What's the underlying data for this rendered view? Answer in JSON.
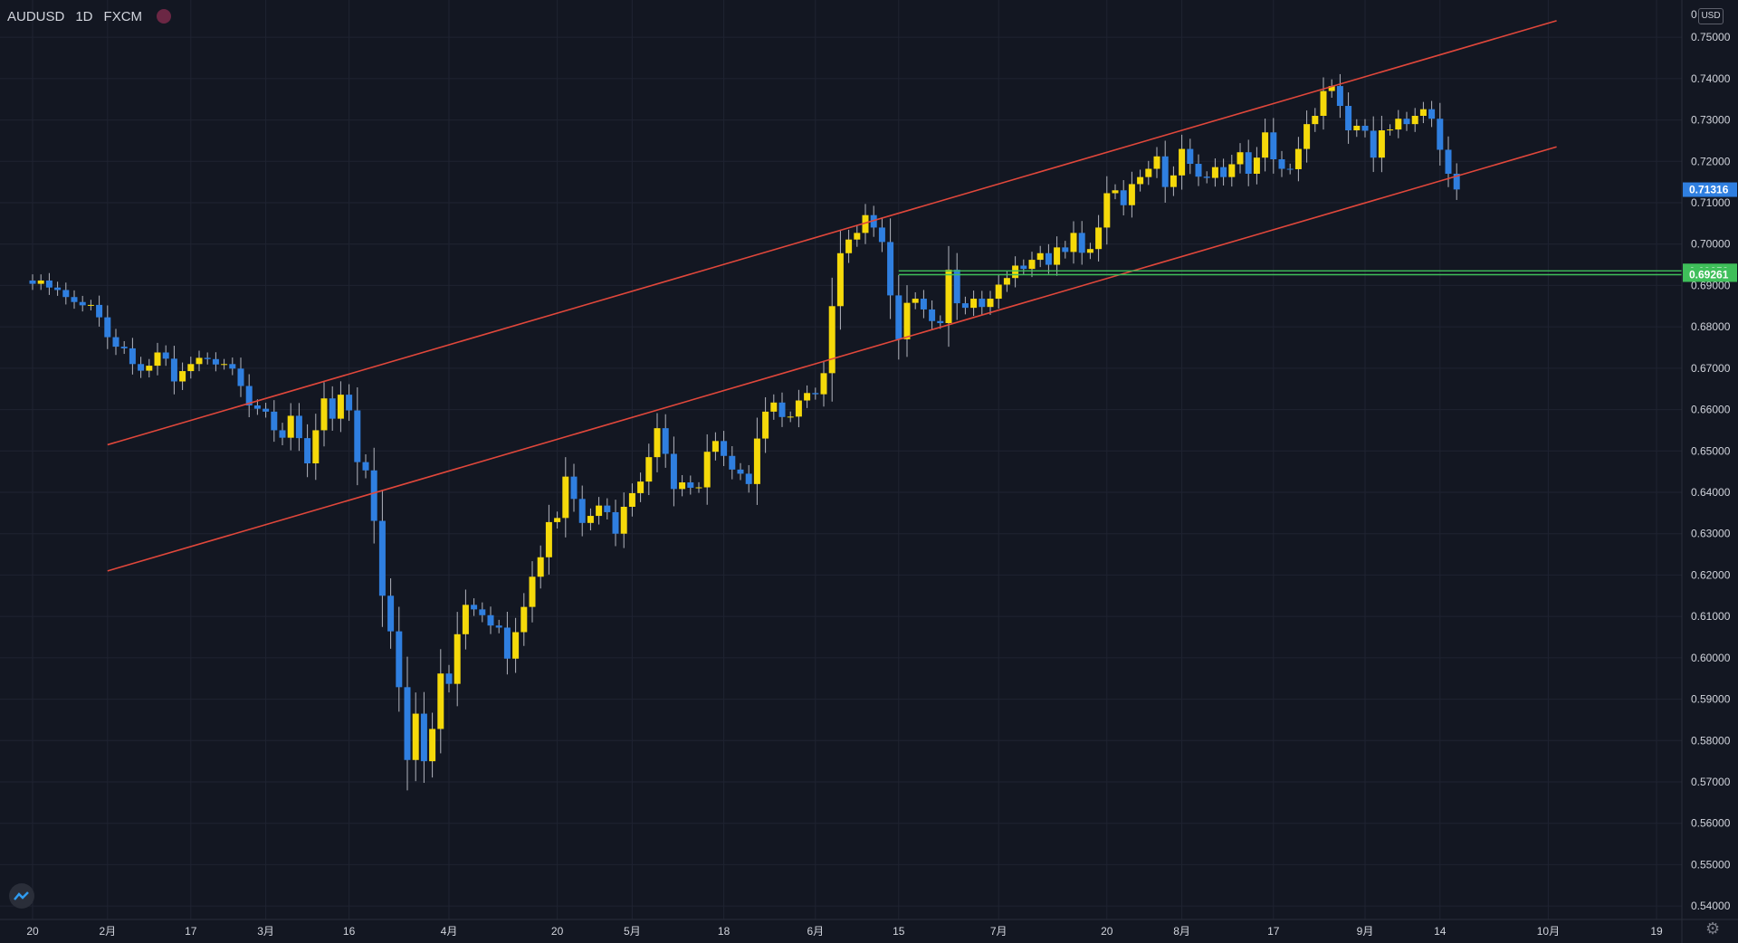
{
  "header": {
    "symbol": "AUDUSD",
    "interval": "1D",
    "source": "FXCM"
  },
  "price_scale": {
    "currency": "USD"
  },
  "colors": {
    "background": "#131722",
    "grid": "#1f2331",
    "up": "#f5d90a",
    "down": "#2f7fe0",
    "wick": "#b2b5be",
    "channel": "#e0473b",
    "level": "#3fbf5a",
    "last_price": "#2f7fe0",
    "text": "#d1d4dc"
  },
  "chart_data": {
    "type": "candlestick",
    "ylim": [
      0.535,
      0.7555
    ],
    "y_ticks": [
      "0.54000",
      "0.55000",
      "0.56000",
      "0.57000",
      "0.58000",
      "0.59000",
      "0.60000",
      "0.61000",
      "0.62000",
      "0.63000",
      "0.64000",
      "0.65000",
      "0.66000",
      "0.67000",
      "0.68000",
      "0.69000",
      "0.70000",
      "0.71000",
      "0.72000",
      "0.73000",
      "0.74000",
      "0.75000"
    ],
    "x_ticks": [
      {
        "label": "20",
        "day": 0
      },
      {
        "label": "2月",
        "day": 9
      },
      {
        "label": "17",
        "day": 19
      },
      {
        "label": "3月",
        "day": 28
      },
      {
        "label": "16",
        "day": 38
      },
      {
        "label": "4月",
        "day": 50
      },
      {
        "label": "20",
        "day": 63
      },
      {
        "label": "5月",
        "day": 72
      },
      {
        "label": "18",
        "day": 83
      },
      {
        "label": "6月",
        "day": 94
      },
      {
        "label": "15",
        "day": 104
      },
      {
        "label": "7月",
        "day": 116
      },
      {
        "label": "20",
        "day": 129
      },
      {
        "label": "8月",
        "day": 138
      },
      {
        "label": "17",
        "day": 149
      },
      {
        "label": "9月",
        "day": 160
      },
      {
        "label": "14",
        "day": 169
      },
      {
        "label": "10月",
        "day": 182
      },
      {
        "label": "19",
        "day": 195
      }
    ],
    "closes": [
      0.6904,
      0.6912,
      0.6895,
      0.6889,
      0.6872,
      0.686,
      0.6852,
      0.6853,
      0.6823,
      0.6775,
      0.6752,
      0.6748,
      0.671,
      0.6694,
      0.6706,
      0.6738,
      0.6723,
      0.6668,
      0.6693,
      0.671,
      0.6725,
      0.6722,
      0.6709,
      0.671,
      0.6699,
      0.6657,
      0.661,
      0.6602,
      0.6595,
      0.655,
      0.6532,
      0.6585,
      0.6531,
      0.647,
      0.655,
      0.6627,
      0.6578,
      0.6636,
      0.6598,
      0.6473,
      0.6453,
      0.6331,
      0.615,
      0.6064,
      0.5929,
      0.5753,
      0.5865,
      0.575,
      0.5828,
      0.5962,
      0.5937,
      0.6057,
      0.6128,
      0.6117,
      0.6103,
      0.6078,
      0.6073,
      0.5998,
      0.6062,
      0.6123,
      0.6196,
      0.6243,
      0.6328,
      0.6338,
      0.6438,
      0.6384,
      0.6326,
      0.6343,
      0.6368,
      0.6352,
      0.63,
      0.6365,
      0.6398,
      0.6426,
      0.6485,
      0.6555,
      0.6493,
      0.6408,
      0.6424,
      0.6411,
      0.6412,
      0.6498,
      0.6524,
      0.6488,
      0.6455,
      0.6445,
      0.642,
      0.653,
      0.6595,
      0.6617,
      0.6582,
      0.6583,
      0.6622,
      0.664,
      0.6637,
      0.6688,
      0.685,
      0.6978,
      0.7011,
      0.7027,
      0.707,
      0.704,
      0.7005,
      0.6876,
      0.677,
      0.6858,
      0.6868,
      0.6842,
      0.6814,
      0.6809,
      0.6938,
      0.6857,
      0.6846,
      0.6868,
      0.6848,
      0.6868,
      0.6902,
      0.6918,
      0.6948,
      0.694,
      0.6962,
      0.6978,
      0.695,
      0.6992,
      0.6981,
      0.7027,
      0.6979,
      0.6988,
      0.704,
      0.7123,
      0.713,
      0.7094,
      0.7145,
      0.7162,
      0.7182,
      0.7212,
      0.7138,
      0.7166,
      0.723,
      0.7194,
      0.7163,
      0.716,
      0.7186,
      0.7162,
      0.7193,
      0.7222,
      0.717,
      0.7209,
      0.727,
      0.7205,
      0.7182,
      0.7181,
      0.723,
      0.729,
      0.731,
      0.737,
      0.7382,
      0.7334,
      0.7275,
      0.7286,
      0.7274,
      0.7209,
      0.7275,
      0.7277,
      0.7303,
      0.729,
      0.731,
      0.7326,
      0.7303,
      0.7228,
      0.717,
      0.7132
    ]
  }
}
